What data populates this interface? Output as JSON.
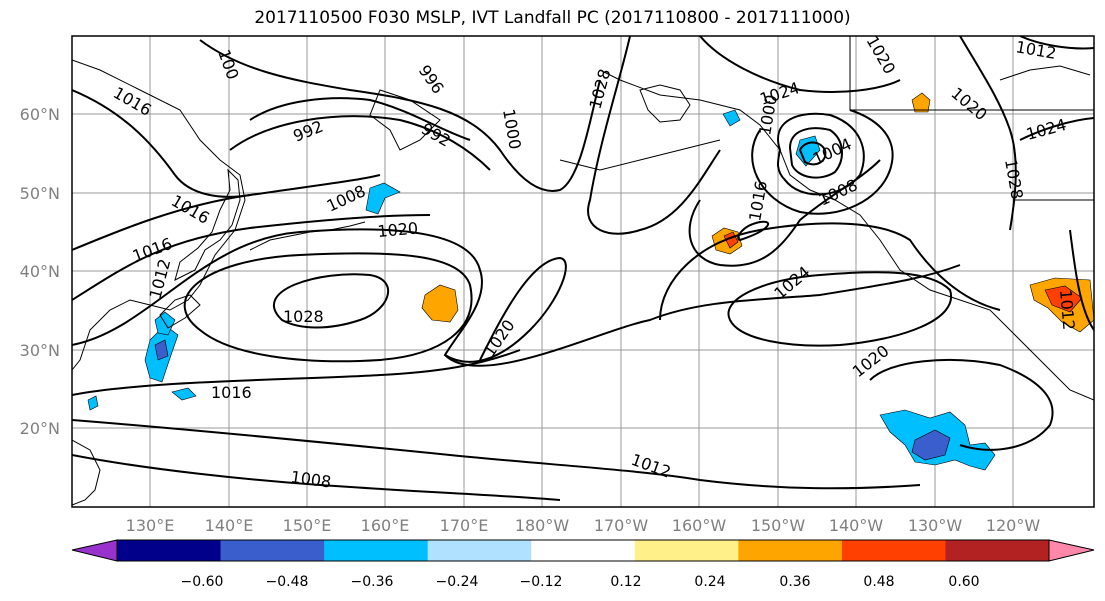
{
  "title": "2017110500 F030 MSLP, IVT Landfall PC (2017110800 - 2017111000)",
  "lat_labels": [
    "60°N",
    "50°N",
    "40°N",
    "30°N",
    "20°N"
  ],
  "lon_labels": [
    "130°E",
    "140°E",
    "150°E",
    "160°E",
    "170°E",
    "180°W",
    "170°W",
    "160°W",
    "150°W",
    "140°W",
    "130°W",
    "120°W"
  ],
  "contour_labels": [
    "1016",
    "100",
    "996",
    "1028",
    "1024",
    "992",
    "992",
    "1000",
    "1020",
    "1012",
    "1008",
    "1020",
    "1024",
    "1016",
    "1016",
    "1004",
    "1000",
    "1008",
    "1020",
    "1016",
    "1028",
    "1020",
    "1024",
    "1020",
    "1016",
    "1012",
    "1008",
    "1012",
    "1028",
    "1012"
  ],
  "colorbar": {
    "colors": [
      "#9932cc",
      "#00008b",
      "#3a5fcd",
      "#00bfff",
      "#b0e2ff",
      "#ffffff",
      "#fff08a",
      "#ffa500",
      "#ff4000",
      "#b22222",
      "#ff88aa"
    ],
    "ticks": [
      "−0.60",
      "−0.48",
      "−0.36",
      "−0.24",
      "−0.12",
      "0.12",
      "0.24",
      "0.36",
      "0.48",
      "0.60"
    ]
  },
  "colors": {
    "contour": "#000000",
    "grid": "#808080",
    "frame": "#000000",
    "label": "#808080"
  }
}
